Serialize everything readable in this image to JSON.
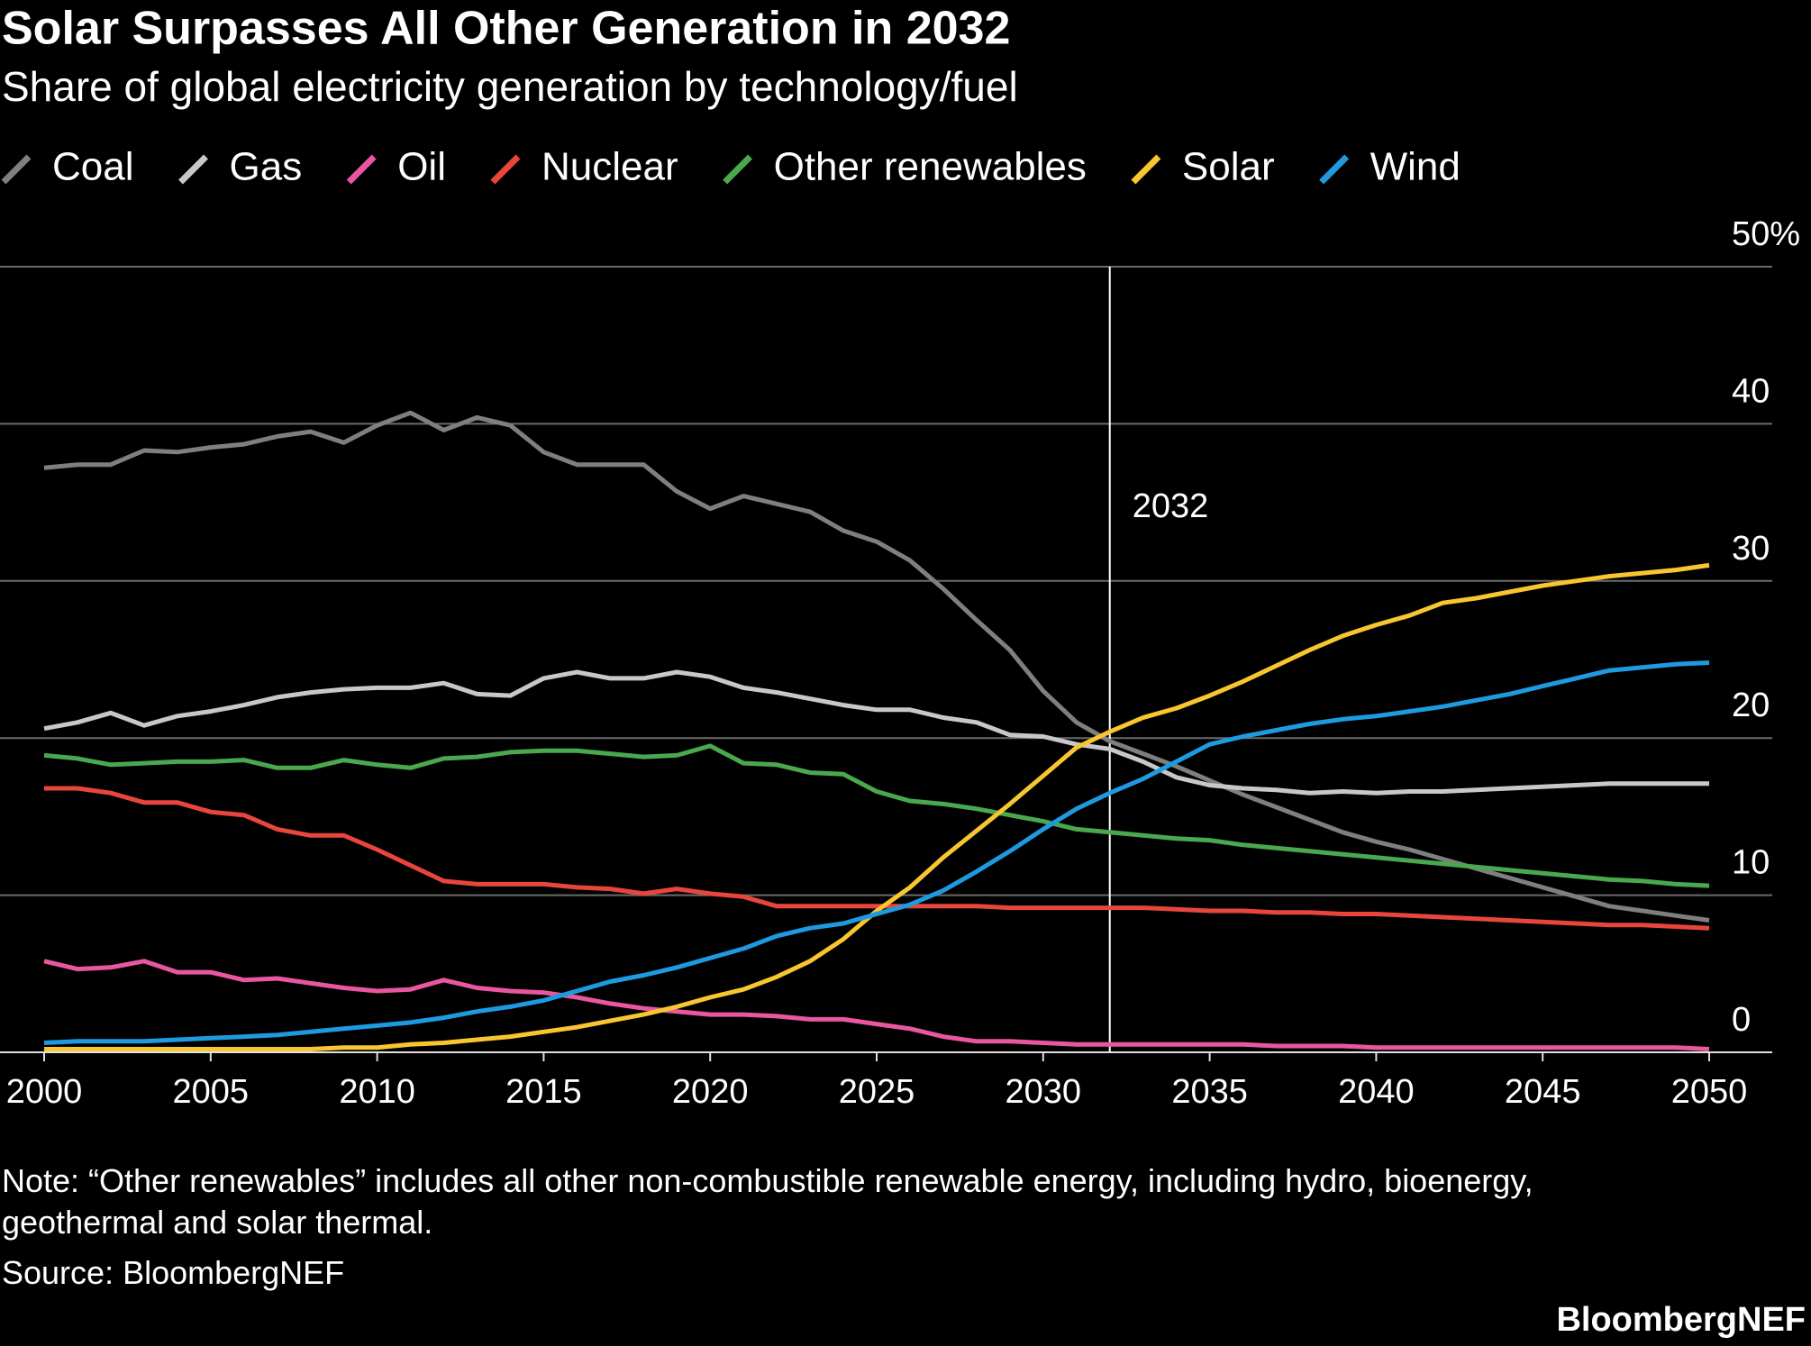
{
  "chart_data": {
    "type": "line",
    "title": "Solar Surpasses All Other Generation in 2032",
    "subtitle": "Share of global electricity generation by technology/fuel",
    "x": [
      2000,
      2001,
      2002,
      2003,
      2004,
      2005,
      2006,
      2007,
      2008,
      2009,
      2010,
      2011,
      2012,
      2013,
      2014,
      2015,
      2016,
      2017,
      2018,
      2019,
      2020,
      2021,
      2022,
      2023,
      2024,
      2025,
      2026,
      2027,
      2028,
      2029,
      2030,
      2031,
      2032,
      2033,
      2034,
      2035,
      2036,
      2037,
      2038,
      2039,
      2040,
      2041,
      2042,
      2043,
      2044,
      2045,
      2046,
      2047,
      2048,
      2049,
      2050
    ],
    "xlim": [
      2000,
      2050
    ],
    "xticks": [
      2000,
      2005,
      2010,
      2015,
      2020,
      2025,
      2030,
      2035,
      2040,
      2045,
      2050
    ],
    "ylim": [
      0,
      50
    ],
    "yticks": [
      0,
      10,
      20,
      30,
      40,
      {
        "value": 50,
        "label": "50%"
      }
    ],
    "grid": true,
    "legend": "top-left",
    "series": [
      {
        "name": "Coal",
        "color": "#7f7f7f",
        "values": [
          37.2,
          37.4,
          37.4,
          38.3,
          38.2,
          38.5,
          38.7,
          39.2,
          39.5,
          38.8,
          39.9,
          40.7,
          39.6,
          40.4,
          39.9,
          38.2,
          37.4,
          37.4,
          37.4,
          35.7,
          34.6,
          35.4,
          34.9,
          34.4,
          33.2,
          32.5,
          31.3,
          29.5,
          27.5,
          25.6,
          23.0,
          21.0,
          19.8,
          19.0,
          18.2,
          17.3,
          16.4,
          15.6,
          14.8,
          14.0,
          13.4,
          12.9,
          12.3,
          11.7,
          11.1,
          10.5,
          9.9,
          9.3,
          9.0,
          8.7,
          8.4
        ]
      },
      {
        "name": "Gas",
        "color": "#c8c8c8",
        "values": [
          20.6,
          21.0,
          21.6,
          20.8,
          21.4,
          21.7,
          22.1,
          22.6,
          22.9,
          23.1,
          23.2,
          23.2,
          23.5,
          22.8,
          22.7,
          23.8,
          24.2,
          23.8,
          23.8,
          24.2,
          23.9,
          23.2,
          22.9,
          22.5,
          22.1,
          21.8,
          21.8,
          21.3,
          21.0,
          20.2,
          20.1,
          19.6,
          19.3,
          18.5,
          17.5,
          17.0,
          16.8,
          16.7,
          16.5,
          16.6,
          16.5,
          16.6,
          16.6,
          16.7,
          16.8,
          16.9,
          17.0,
          17.1,
          17.1,
          17.1,
          17.1
        ]
      },
      {
        "name": "Oil",
        "color": "#e8579f",
        "values": [
          5.8,
          5.3,
          5.4,
          5.8,
          5.1,
          5.1,
          4.6,
          4.7,
          4.4,
          4.1,
          3.9,
          4.0,
          4.6,
          4.1,
          3.9,
          3.8,
          3.5,
          3.1,
          2.8,
          2.6,
          2.4,
          2.4,
          2.3,
          2.1,
          2.1,
          1.8,
          1.5,
          1.0,
          0.7,
          0.7,
          0.6,
          0.5,
          0.5,
          0.5,
          0.5,
          0.5,
          0.5,
          0.4,
          0.4,
          0.4,
          0.3,
          0.3,
          0.3,
          0.3,
          0.3,
          0.3,
          0.3,
          0.3,
          0.3,
          0.3,
          0.2
        ]
      },
      {
        "name": "Nuclear",
        "color": "#e8463c",
        "values": [
          16.8,
          16.8,
          16.5,
          15.9,
          15.9,
          15.3,
          15.1,
          14.2,
          13.8,
          13.8,
          12.9,
          11.9,
          10.9,
          10.7,
          10.7,
          10.7,
          10.5,
          10.4,
          10.1,
          10.4,
          10.1,
          9.9,
          9.3,
          9.3,
          9.3,
          9.3,
          9.3,
          9.3,
          9.3,
          9.2,
          9.2,
          9.2,
          9.2,
          9.2,
          9.1,
          9.0,
          9.0,
          8.9,
          8.9,
          8.8,
          8.8,
          8.7,
          8.6,
          8.5,
          8.4,
          8.3,
          8.2,
          8.1,
          8.1,
          8.0,
          7.9
        ]
      },
      {
        "name": "Other renewables",
        "color": "#4aa84e",
        "values": [
          18.9,
          18.7,
          18.3,
          18.4,
          18.5,
          18.5,
          18.6,
          18.1,
          18.1,
          18.6,
          18.3,
          18.1,
          18.7,
          18.8,
          19.1,
          19.2,
          19.2,
          19.0,
          18.8,
          18.9,
          19.5,
          18.4,
          18.3,
          17.8,
          17.7,
          16.6,
          16.0,
          15.8,
          15.5,
          15.1,
          14.7,
          14.2,
          14.0,
          13.8,
          13.6,
          13.5,
          13.2,
          13.0,
          12.8,
          12.6,
          12.4,
          12.2,
          12.0,
          11.8,
          11.6,
          11.4,
          11.2,
          11.0,
          10.9,
          10.7,
          10.6
        ]
      },
      {
        "name": "Solar",
        "color": "#f8c630",
        "values": [
          0.2,
          0.2,
          0.2,
          0.2,
          0.2,
          0.2,
          0.2,
          0.2,
          0.2,
          0.3,
          0.3,
          0.5,
          0.6,
          0.8,
          1.0,
          1.3,
          1.6,
          2.0,
          2.4,
          2.9,
          3.5,
          4.0,
          4.8,
          5.8,
          7.2,
          9.0,
          10.5,
          12.4,
          14.1,
          15.8,
          17.6,
          19.4,
          20.4,
          21.3,
          21.9,
          22.7,
          23.6,
          24.6,
          25.6,
          26.5,
          27.2,
          27.8,
          28.6,
          28.9,
          29.3,
          29.7,
          30.0,
          30.3,
          30.5,
          30.7,
          31.0
        ]
      },
      {
        "name": "Wind",
        "color": "#1e9be0",
        "values": [
          0.6,
          0.7,
          0.7,
          0.7,
          0.8,
          0.9,
          1.0,
          1.1,
          1.3,
          1.5,
          1.7,
          1.9,
          2.2,
          2.6,
          2.9,
          3.3,
          3.9,
          4.5,
          4.9,
          5.4,
          6.0,
          6.6,
          7.4,
          7.9,
          8.2,
          8.8,
          9.4,
          10.3,
          11.5,
          12.8,
          14.2,
          15.5,
          16.5,
          17.4,
          18.5,
          19.6,
          20.1,
          20.5,
          20.9,
          21.2,
          21.4,
          21.7,
          22.0,
          22.4,
          22.8,
          23.3,
          23.8,
          24.3,
          24.5,
          24.7,
          24.8
        ]
      }
    ],
    "annotations": [
      {
        "x": 2032,
        "text": "2032"
      }
    ],
    "note": "Note: “Other renewables” includes all other non-combustible renewable energy, including hydro, bioenergy, geothermal and solar thermal.",
    "source": "Source: BloombergNEF",
    "branding": "BloombergNEF"
  }
}
